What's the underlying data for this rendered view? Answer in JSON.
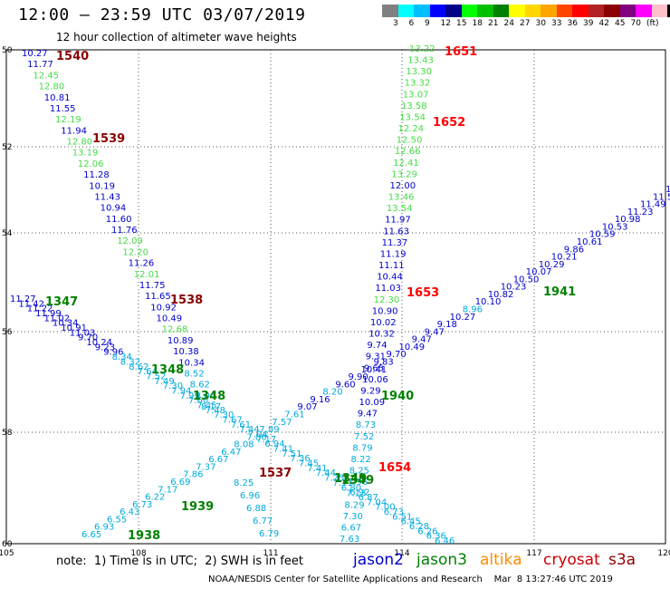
{
  "header": {
    "title": "12:00 – 23:59 UTC 03/07/2019",
    "subtitle": "12 hour collection of altimeter wave heights"
  },
  "colorbar": {
    "colors": [
      "#808080",
      "#00ffff",
      "#00bfff",
      "#0000ff",
      "#00008b",
      "#00ff00",
      "#00c000",
      "#008000",
      "#ffff00",
      "#ffd700",
      "#ffa500",
      "#ff4500",
      "#ff0000",
      "#b22222",
      "#8b0000",
      "#800080",
      "#ff00ff",
      "#ffc0cb",
      "#000000"
    ],
    "ticks": [
      "3",
      "6",
      "9",
      "12",
      "15",
      "18",
      "21",
      "24",
      "27",
      "30",
      "33",
      "36",
      "39",
      "42",
      "45",
      "70",
      "(ft)"
    ]
  },
  "axes": {
    "x_ticks": [
      "105",
      "108",
      "111",
      "114",
      "117",
      "120"
    ],
    "y_ticks": [
      "50",
      "52",
      "54",
      "56",
      "58",
      "60"
    ]
  },
  "footer": {
    "note": "note:  1) Time is in UTC;  2) SWH is in feet",
    "credit": "NOAA/NESDIS Center for Satellite Applications and Research    Mar  8 13:27:46 UTC 2019"
  },
  "legend": [
    {
      "label": "jason2",
      "color": "#0000cc"
    },
    {
      "label": "jason3",
      "color": "#008000"
    },
    {
      "label": "altika",
      "color": "#ff8c00"
    },
    {
      "label": "cryosat",
      "color": "#cc0000"
    },
    {
      "label": "s3a",
      "color": "#8b0000"
    }
  ],
  "track_labels": [
    {
      "text": "1540",
      "color": "#8b0000"
    },
    {
      "text": "1539",
      "color": "#8b0000"
    },
    {
      "text": "1538",
      "color": "#8b0000"
    },
    {
      "text": "1537",
      "color": "#8b0000"
    },
    {
      "text": "1347",
      "color": "#008000"
    },
    {
      "text": "1348",
      "color": "#008000"
    },
    {
      "text": "1348",
      "color": "#008000"
    },
    {
      "text": "1349",
      "color": "#008000"
    },
    {
      "text": "1349",
      "color": "#008000"
    },
    {
      "text": "1651",
      "color": "#ff0000"
    },
    {
      "text": "1652",
      "color": "#ff0000"
    },
    {
      "text": "1653",
      "color": "#ff0000"
    },
    {
      "text": "1654",
      "color": "#ff0000"
    },
    {
      "text": "1940",
      "color": "#008000"
    },
    {
      "text": "1941",
      "color": "#008000"
    },
    {
      "text": "1939",
      "color": "#008000"
    },
    {
      "text": "1938",
      "color": "#008000"
    }
  ],
  "tracks": [
    {
      "name": "track-s3a-1540",
      "values": [
        {
          "v": "10.27",
          "c": "#0000cc"
        },
        {
          "v": "11.77",
          "c": "#0000cc"
        },
        {
          "v": "12.45",
          "c": "#44dd44"
        },
        {
          "v": "12.80",
          "c": "#44dd44"
        },
        {
          "v": "10.81",
          "c": "#0000cc"
        },
        {
          "v": "11.55",
          "c": "#0000cc"
        },
        {
          "v": "12.19",
          "c": "#44dd44"
        },
        {
          "v": "11.94",
          "c": "#0000cc"
        },
        {
          "v": "12.80",
          "c": "#44dd44"
        },
        {
          "v": "13.19",
          "c": "#44dd44"
        },
        {
          "v": "12.06",
          "c": "#44dd44"
        },
        {
          "v": "11.28",
          "c": "#0000cc"
        },
        {
          "v": "10.19",
          "c": "#0000cc"
        },
        {
          "v": "11.43",
          "c": "#0000cc"
        },
        {
          "v": "10.94",
          "c": "#0000cc"
        },
        {
          "v": "11.60",
          "c": "#0000cc"
        },
        {
          "v": "11.76",
          "c": "#0000cc"
        },
        {
          "v": "12.09",
          "c": "#44dd44"
        },
        {
          "v": "12.20",
          "c": "#44dd44"
        },
        {
          "v": "11.26",
          "c": "#0000cc"
        },
        {
          "v": "12.01",
          "c": "#44dd44"
        },
        {
          "v": "11.75",
          "c": "#0000cc"
        },
        {
          "v": "11.65",
          "c": "#0000cc"
        },
        {
          "v": "10.92",
          "c": "#0000cc"
        },
        {
          "v": "10.49",
          "c": "#0000cc"
        },
        {
          "v": "12.68",
          "c": "#44dd44"
        },
        {
          "v": "10.89",
          "c": "#0000cc"
        },
        {
          "v": "10.38",
          "c": "#0000cc"
        },
        {
          "v": "10.34",
          "c": "#0000cc"
        },
        {
          "v": "8.52",
          "c": "#00aadd"
        },
        {
          "v": "8.62",
          "c": "#00aadd"
        },
        {
          "v": "8.04",
          "c": "#00aadd"
        },
        {
          "v": "8.17",
          "c": "#00aadd"
        }
      ]
    },
    {
      "name": "track-jason3-1347",
      "values": [
        {
          "v": "11.27",
          "c": "#0000cc"
        },
        {
          "v": "11.42",
          "c": "#0000cc"
        },
        {
          "v": "11.22",
          "c": "#0000cc"
        },
        {
          "v": "11.99",
          "c": "#0000cc"
        },
        {
          "v": "11.02",
          "c": "#0000cc"
        },
        {
          "v": "10.34",
          "c": "#0000cc"
        },
        {
          "v": "10.91",
          "c": "#0000cc"
        },
        {
          "v": "11.03",
          "c": "#0000cc"
        },
        {
          "v": "9.70",
          "c": "#0000cc"
        },
        {
          "v": "10.24",
          "c": "#0000cc"
        },
        {
          "v": "9.23",
          "c": "#0000cc"
        },
        {
          "v": "9.96",
          "c": "#0000cc"
        },
        {
          "v": "8.34",
          "c": "#00aadd"
        },
        {
          "v": "8.32",
          "c": "#00aadd"
        },
        {
          "v": "8.62",
          "c": "#00aadd"
        },
        {
          "v": "7.64",
          "c": "#00aadd"
        },
        {
          "v": "7.52",
          "c": "#00aadd"
        },
        {
          "v": "7.49",
          "c": "#00aadd"
        },
        {
          "v": "7.30",
          "c": "#00aadd"
        },
        {
          "v": "7.94",
          "c": "#00aadd"
        },
        {
          "v": "7.99",
          "c": "#00aadd"
        },
        {
          "v": "7.60",
          "c": "#00aadd"
        },
        {
          "v": "7.45",
          "c": "#00aadd"
        },
        {
          "v": "7.48",
          "c": "#00aadd"
        },
        {
          "v": "7.30",
          "c": "#00aadd"
        },
        {
          "v": "7.67",
          "c": "#00aadd"
        },
        {
          "v": "7.61",
          "c": "#00aadd"
        },
        {
          "v": "7.44",
          "c": "#00aadd"
        },
        {
          "v": "7.04",
          "c": "#00aadd"
        },
        {
          "v": "7.17",
          "c": "#00aadd"
        },
        {
          "v": "6.94",
          "c": "#00aadd"
        },
        {
          "v": "7.41",
          "c": "#00aadd"
        },
        {
          "v": "7.51",
          "c": "#00aadd"
        },
        {
          "v": "7.36",
          "c": "#00aadd"
        },
        {
          "v": "7.45",
          "c": "#00aadd"
        },
        {
          "v": "7.41",
          "c": "#00aadd"
        },
        {
          "v": "7.44",
          "c": "#00aadd"
        },
        {
          "v": "7.25",
          "c": "#00aadd"
        },
        {
          "v": "7.11",
          "c": "#00aadd"
        },
        {
          "v": "6.80",
          "c": "#00aadd"
        },
        {
          "v": "6.92",
          "c": "#00aadd"
        },
        {
          "v": "6.87",
          "c": "#00aadd"
        },
        {
          "v": "7.04",
          "c": "#00aadd"
        },
        {
          "v": "7.00",
          "c": "#00aadd"
        },
        {
          "v": "6.73",
          "c": "#00aadd"
        },
        {
          "v": "6.51",
          "c": "#00aadd"
        },
        {
          "v": "6.45",
          "c": "#00aadd"
        },
        {
          "v": "6.28",
          "c": "#00aadd"
        },
        {
          "v": "6.26",
          "c": "#00aadd"
        },
        {
          "v": "6.36",
          "c": "#00aadd"
        },
        {
          "v": "6.46",
          "c": "#00aadd"
        }
      ]
    },
    {
      "name": "track-cryosat-1651",
      "values": [
        {
          "v": "13.22",
          "c": "#44dd44"
        },
        {
          "v": "13.43",
          "c": "#44dd44"
        },
        {
          "v": "13.30",
          "c": "#44dd44"
        },
        {
          "v": "13.32",
          "c": "#44dd44"
        },
        {
          "v": "13.07",
          "c": "#44dd44"
        },
        {
          "v": "13.58",
          "c": "#44dd44"
        },
        {
          "v": "13.54",
          "c": "#44dd44"
        },
        {
          "v": "12.24",
          "c": "#44dd44"
        },
        {
          "v": "12.50",
          "c": "#44dd44"
        },
        {
          "v": "12.66",
          "c": "#44dd44"
        },
        {
          "v": "12.41",
          "c": "#44dd44"
        },
        {
          "v": "13.29",
          "c": "#44dd44"
        },
        {
          "v": "12.00",
          "c": "#0000cc"
        },
        {
          "v": "13.46",
          "c": "#44dd44"
        },
        {
          "v": "13.54",
          "c": "#44dd44"
        },
        {
          "v": "11.97",
          "c": "#0000cc"
        },
        {
          "v": "11.63",
          "c": "#0000cc"
        },
        {
          "v": "11.37",
          "c": "#0000cc"
        },
        {
          "v": "11.19",
          "c": "#0000cc"
        },
        {
          "v": "11.11",
          "c": "#0000cc"
        },
        {
          "v": "10.44",
          "c": "#0000cc"
        },
        {
          "v": "11.03",
          "c": "#0000cc"
        },
        {
          "v": "12.30",
          "c": "#44dd44"
        },
        {
          "v": "10.90",
          "c": "#0000cc"
        },
        {
          "v": "10.02",
          "c": "#0000cc"
        },
        {
          "v": "10.32",
          "c": "#0000cc"
        },
        {
          "v": "9.74",
          "c": "#0000cc"
        },
        {
          "v": "9.31",
          "c": "#0000cc"
        },
        {
          "v": "9.65",
          "c": "#0000cc"
        },
        {
          "v": "10.06",
          "c": "#0000cc"
        },
        {
          "v": "9.29",
          "c": "#0000cc"
        },
        {
          "v": "10.09",
          "c": "#0000cc"
        },
        {
          "v": "9.47",
          "c": "#0000cc"
        },
        {
          "v": "8.73",
          "c": "#00aadd"
        },
        {
          "v": "7.52",
          "c": "#00aadd"
        },
        {
          "v": "8.79",
          "c": "#00aadd"
        },
        {
          "v": "8.22",
          "c": "#00aadd"
        },
        {
          "v": "8.25",
          "c": "#00aadd"
        },
        {
          "v": "7.96",
          "c": "#00aadd"
        },
        {
          "v": "7.13",
          "c": "#00aadd"
        },
        {
          "v": "8.29",
          "c": "#00aadd"
        },
        {
          "v": "7.30",
          "c": "#00aadd"
        },
        {
          "v": "6.67",
          "c": "#00aadd"
        },
        {
          "v": "7.63",
          "c": "#00aadd"
        }
      ]
    },
    {
      "name": "track-jason3-1941",
      "values": [
        {
          "v": "11.42",
          "c": "#0000cc"
        },
        {
          "v": "11.55",
          "c": "#0000cc"
        },
        {
          "v": "11.49",
          "c": "#0000cc"
        },
        {
          "v": "11.23",
          "c": "#0000cc"
        },
        {
          "v": "10.98",
          "c": "#0000cc"
        },
        {
          "v": "10.53",
          "c": "#0000cc"
        },
        {
          "v": "10.59",
          "c": "#0000cc"
        },
        {
          "v": "10.61",
          "c": "#0000cc"
        },
        {
          "v": "9.86",
          "c": "#0000cc"
        },
        {
          "v": "10.21",
          "c": "#0000cc"
        },
        {
          "v": "10.29",
          "c": "#0000cc"
        },
        {
          "v": "10.07",
          "c": "#0000cc"
        },
        {
          "v": "10.50",
          "c": "#0000cc"
        },
        {
          "v": "10.23",
          "c": "#0000cc"
        },
        {
          "v": "10.82",
          "c": "#0000cc"
        },
        {
          "v": "10.10",
          "c": "#0000cc"
        },
        {
          "v": "8.96",
          "c": "#00aadd"
        },
        {
          "v": "10.27",
          "c": "#0000cc"
        },
        {
          "v": "9.18",
          "c": "#0000cc"
        },
        {
          "v": "9.47",
          "c": "#0000cc"
        },
        {
          "v": "9.47",
          "c": "#0000cc"
        },
        {
          "v": "10.49",
          "c": "#0000cc"
        },
        {
          "v": "9.70",
          "c": "#0000cc"
        },
        {
          "v": "9.83",
          "c": "#0000cc"
        },
        {
          "v": "10.41",
          "c": "#0000cc"
        },
        {
          "v": "9.90",
          "c": "#0000cc"
        },
        {
          "v": "9.60",
          "c": "#0000cc"
        },
        {
          "v": "8.20",
          "c": "#00aadd"
        },
        {
          "v": "9.16",
          "c": "#0000cc"
        },
        {
          "v": "9.07",
          "c": "#0000cc"
        },
        {
          "v": "7.61",
          "c": "#00aadd"
        },
        {
          "v": "7.57",
          "c": "#00aadd"
        },
        {
          "v": "7.89",
          "c": "#00aadd"
        },
        {
          "v": "7.86",
          "c": "#00aadd"
        },
        {
          "v": "8.08",
          "c": "#00aadd"
        },
        {
          "v": "6.47",
          "c": "#00aadd"
        },
        {
          "v": "6.67",
          "c": "#00aadd"
        },
        {
          "v": "7.37",
          "c": "#00aadd"
        },
        {
          "v": "7.86",
          "c": "#00aadd"
        },
        {
          "v": "6.69",
          "c": "#00aadd"
        },
        {
          "v": "7.17",
          "c": "#00aadd"
        },
        {
          "v": "6.22",
          "c": "#00aadd"
        },
        {
          "v": "6.73",
          "c": "#00aadd"
        },
        {
          "v": "6.43",
          "c": "#00aadd"
        },
        {
          "v": "6.55",
          "c": "#00aadd"
        },
        {
          "v": "6.93",
          "c": "#00aadd"
        },
        {
          "v": "6.65",
          "c": "#00aadd"
        }
      ]
    },
    {
      "name": "track-1537-lower",
      "values": [
        {
          "v": "8.25",
          "c": "#00aadd"
        },
        {
          "v": "6.96",
          "c": "#00aadd"
        },
        {
          "v": "6.88",
          "c": "#00aadd"
        },
        {
          "v": "6.77",
          "c": "#00aadd"
        },
        {
          "v": "6.79",
          "c": "#00aadd"
        }
      ]
    }
  ]
}
